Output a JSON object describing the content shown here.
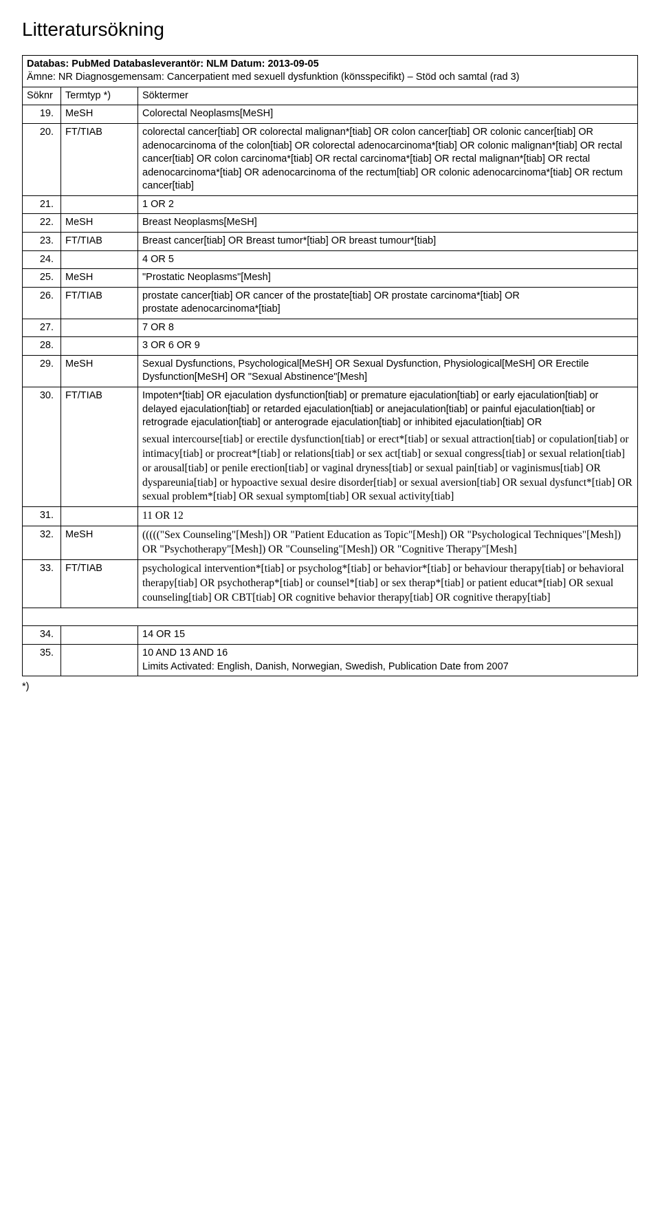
{
  "page_title": "Litteratursökning",
  "meta": {
    "line1_bold": "Databas: PubMed Databasleverantör: NLM Datum: 2013-09-05",
    "line2": "Ämne: NR Diagnosgemensam: Cancerpatient med sexuell dysfunktion (könsspecifikt) – Stöd och samtal (rad 3)"
  },
  "headers": {
    "c1": "Söknr",
    "c2": "Termtyp *)",
    "c3": "Söktermer"
  },
  "rows": [
    {
      "n": "19.",
      "t": "MeSH",
      "s": "Colorectal Neoplasms[MeSH]"
    },
    {
      "n": "20.",
      "t": "FT/TIAB",
      "s": "colorectal cancer[tiab] OR colorectal malignan*[tiab] OR colon cancer[tiab] OR colonic cancer[tiab] OR adenocarcinoma of the colon[tiab] OR colorectal adenocarcinoma*[tiab] OR colonic malignan*[tiab] OR rectal cancer[tiab] OR colon carcinoma*[tiab] OR rectal carcinoma*[tiab] OR rectal malignan*[tiab] OR rectal adenocarcinoma*[tiab] OR adenocarcinoma of the rectum[tiab] OR colonic adenocarcinoma*[tiab] OR rectum cancer[tiab]"
    },
    {
      "n": "21.",
      "t": "",
      "s": "1 OR 2"
    },
    {
      "n": "22.",
      "t": "MeSH",
      "s": "Breast Neoplasms[MeSH]"
    },
    {
      "n": "23.",
      "t": "FT/TIAB",
      "s": "Breast cancer[tiab] OR Breast tumor*[tiab] OR breast tumour*[tiab]"
    },
    {
      "n": "24.",
      "t": "",
      "s": "4 OR 5"
    },
    {
      "n": "25.",
      "t": "MeSH",
      "s": "\"Prostatic Neoplasms\"[Mesh]"
    },
    {
      "n": "26.",
      "t": "FT/TIAB",
      "s": "prostate cancer[tiab] OR cancer of the prostate[tiab] OR prostate carcinoma*[tiab] OR\nprostate adenocarcinoma*[tiab]"
    },
    {
      "n": "27.",
      "t": "",
      "s": "7 OR 8"
    },
    {
      "n": "28.",
      "t": "",
      "s": "3 OR 6 OR 9"
    },
    {
      "n": "29.",
      "t": "MeSH",
      "s": "Sexual Dysfunctions, Psychological[MeSH] OR Sexual Dysfunction, Physiological[MeSH] OR Erectile Dysfunction[MeSH] OR \"Sexual Abstinence\"[Mesh]"
    },
    {
      "n": "30.",
      "t": "FT/TIAB",
      "s_parts": [
        {
          "text": "Impoten*[tiab] OR ejaculation dysfunction[tiab] or premature ejaculation[tiab] or early ejaculation[tiab] or delayed ejaculation[tiab] or retarded ejaculation[tiab] or anejaculation[tiab] or painful ejaculation[tiab] or retrograde ejaculation[tiab] or anterograde ejaculation[tiab] or inhibited ejaculation[tiab] OR",
          "font": "sans"
        },
        {
          "text": "sexual intercourse[tiab] or erectile dysfunction[tiab] or erect*[tiab] or sexual attraction[tiab] or copulation[tiab] or intimacy[tiab] or procreat*[tiab] or relations[tiab] or sex act[tiab] or sexual congress[tiab] or sexual relation[tiab] or arousal[tiab] or penile erection[tiab] or vaginal dryness[tiab] or sexual pain[tiab] or vaginismus[tiab] OR dyspareunia[tiab] or hypoactive sexual desire disorder[tiab] or sexual aversion[tiab] OR sexual dysfunct*[tiab] OR sexual problem*[tiab] OR sexual symptom[tiab] OR sexual activity[tiab]",
          "font": "serif"
        }
      ]
    },
    {
      "n": "31.",
      "t": "",
      "s": "11 OR 12",
      "font": "serif"
    },
    {
      "n": "32.",
      "t": "MeSH",
      "s": "(((((\"Sex Counseling\"[Mesh]) OR \"Patient Education as Topic\"[Mesh]) OR \"Psychological Techniques\"[Mesh]) OR \"Psychotherapy\"[Mesh]) OR \"Counseling\"[Mesh]) OR \"Cognitive Therapy\"[Mesh]",
      "font": "serif"
    },
    {
      "n": "33.",
      "t": "FT/TIAB",
      "s": "psychological intervention*[tiab] or psycholog*[tiab] or behavior*[tiab] or behaviour therapy[tiab] or behavioral therapy[tiab] OR psychotherap*[tiab] or counsel*[tiab] or sex therap*[tiab] or patient educat*[tiab] OR sexual counseling[tiab] OR CBT[tiab] OR cognitive behavior therapy[tiab] OR cognitive therapy[tiab]",
      "font": "serif"
    },
    {
      "n": "34.",
      "t": "",
      "s": "14 OR 15",
      "gap_before": true
    },
    {
      "n": "35.",
      "t": "",
      "s": "10 AND 13 AND 16\nLimits Activated: English, Danish, Norwegian, Swedish, Publication Date from 2007"
    }
  ],
  "footer": "*)"
}
